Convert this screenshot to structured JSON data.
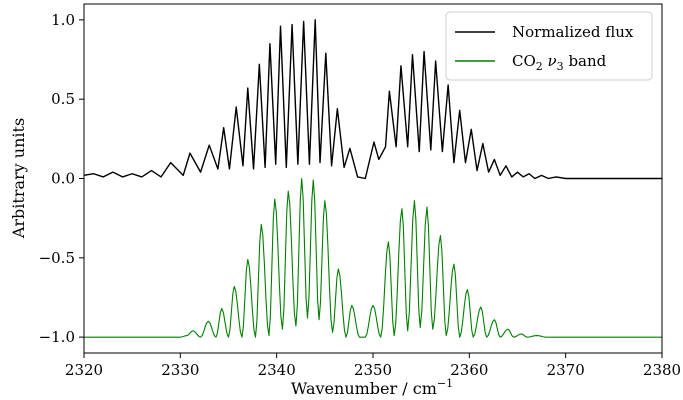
{
  "chart_data": {
    "type": "line",
    "xlabel": "Wavenumber / cm",
    "xlabel_superscript": "−1",
    "ylabel": "Arbitrary units",
    "xlim": [
      2320,
      2380
    ],
    "ylim": [
      -1.1,
      1.1
    ],
    "x_ticks": [
      "2320",
      "2330",
      "2340",
      "2350",
      "2360",
      "2370",
      "2380"
    ],
    "y_ticks": [
      "−1.0",
      "−0.5",
      "0.0",
      "0.5",
      "1.0"
    ],
    "legend": {
      "placement": "top-right",
      "entries": [
        {
          "label": "Normalized flux",
          "color": "#000000"
        },
        {
          "label": "CO",
          "subscript": "2",
          "label_suffix": " ν",
          "suffix_subscript": "3",
          "label_tail": " band",
          "color": "#008000"
        }
      ]
    },
    "series": [
      {
        "name": "Normalized flux",
        "color": "#000000",
        "baseline": 0.0,
        "x": [
          2320.0,
          2321.0,
          2322.0,
          2323.0,
          2324.0,
          2325.0,
          2326.0,
          2327.0,
          2328.0,
          2329.0,
          2330.3,
          2331.0,
          2332.1,
          2333.0,
          2333.9,
          2334.5,
          2335.1,
          2335.8,
          2336.5,
          2337.0,
          2337.6,
          2338.2,
          2338.8,
          2339.3,
          2339.9,
          2340.4,
          2341.0,
          2341.6,
          2342.2,
          2342.8,
          2343.4,
          2344.0,
          2344.5,
          2345.1,
          2345.7,
          2346.3,
          2347.0,
          2347.6,
          2348.4,
          2349.2,
          2350.1,
          2350.6,
          2351.3,
          2351.7,
          2352.4,
          2352.9,
          2353.6,
          2354.1,
          2354.8,
          2355.3,
          2356.0,
          2356.5,
          2357.2,
          2357.8,
          2358.4,
          2359.0,
          2359.6,
          2360.2,
          2360.8,
          2361.4,
          2362.0,
          2362.6,
          2363.2,
          2363.8,
          2364.4,
          2365.0,
          2365.6,
          2366.2,
          2366.8,
          2367.5,
          2368.2,
          2369.0,
          2370.0,
          2372.0,
          2374.0,
          2376.0,
          2378.0,
          2380.0
        ],
        "values": [
          0.02,
          0.03,
          0.01,
          0.04,
          0.01,
          0.03,
          0.01,
          0.05,
          0.01,
          0.1,
          0.02,
          0.16,
          0.04,
          0.21,
          0.06,
          0.32,
          0.06,
          0.45,
          0.08,
          0.57,
          0.06,
          0.72,
          0.07,
          0.85,
          0.09,
          0.96,
          0.07,
          0.97,
          0.09,
          0.99,
          0.09,
          1.0,
          0.1,
          0.79,
          0.08,
          0.44,
          0.07,
          0.19,
          0.01,
          0.0,
          0.23,
          0.12,
          0.2,
          0.55,
          0.2,
          0.71,
          0.2,
          0.78,
          0.17,
          0.8,
          0.18,
          0.74,
          0.17,
          0.59,
          0.1,
          0.43,
          0.1,
          0.31,
          0.05,
          0.22,
          0.04,
          0.12,
          0.02,
          0.08,
          0.01,
          0.04,
          0.01,
          0.03,
          0.0,
          0.02,
          0.0,
          0.01,
          0.0,
          0.0,
          0.0,
          0.0,
          0.0,
          0.0
        ]
      },
      {
        "name": "CO2 ν3 band",
        "color": "#008000",
        "baseline": -1.0,
        "x": [
          2320.0,
          2330.0,
          2330.7,
          2331.3,
          2332.1,
          2332.9,
          2333.7,
          2334.3,
          2335.0,
          2335.6,
          2336.4,
          2337.0,
          2337.8,
          2338.4,
          2339.2,
          2339.8,
          2340.6,
          2341.2,
          2342.0,
          2342.6,
          2343.2,
          2343.8,
          2344.4,
          2345.0,
          2345.8,
          2346.4,
          2347.2,
          2347.8,
          2348.6,
          2349.2,
          2350.0,
          2350.8,
          2351.6,
          2352.2,
          2353.0,
          2353.6,
          2354.3,
          2354.9,
          2355.6,
          2356.2,
          2357.0,
          2357.6,
          2358.4,
          2359.0,
          2359.8,
          2360.4,
          2361.2,
          2361.8,
          2362.6,
          2363.2,
          2364.0,
          2364.6,
          2365.4,
          2366.0,
          2367.0,
          2368.0,
          2370.0,
          2380.0
        ],
        "values": [
          -1.0,
          -1.0,
          -0.99,
          -0.96,
          -1.0,
          -0.9,
          -1.0,
          -0.82,
          -1.0,
          -0.68,
          -1.0,
          -0.51,
          -1.0,
          -0.29,
          -0.99,
          -0.13,
          -0.95,
          -0.08,
          -0.93,
          0.0,
          -0.88,
          -0.01,
          -0.89,
          -0.14,
          -0.97,
          -0.57,
          -1.0,
          -0.8,
          -1.0,
          -1.0,
          -0.8,
          -1.0,
          -0.4,
          -0.99,
          -0.19,
          -0.96,
          -0.14,
          -0.94,
          -0.18,
          -0.95,
          -0.36,
          -0.99,
          -0.54,
          -1.0,
          -0.7,
          -1.0,
          -0.81,
          -1.0,
          -0.89,
          -1.0,
          -0.95,
          -1.0,
          -0.98,
          -1.0,
          -0.99,
          -1.0,
          -1.0,
          -1.0
        ]
      }
    ]
  }
}
